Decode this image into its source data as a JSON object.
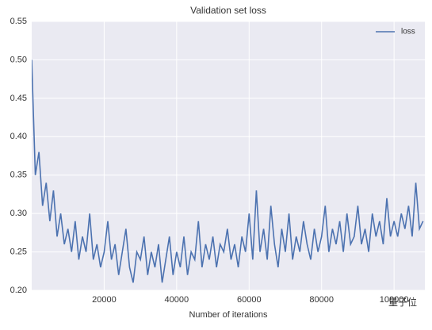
{
  "chart_data": {
    "type": "line",
    "title": "Validation set loss",
    "xlabel": "Number of iterations",
    "watermark": "量子位",
    "x": [
      0,
      1000,
      2000,
      3000,
      4000,
      5000,
      6000,
      7000,
      8000,
      9000,
      10000,
      11000,
      12000,
      13000,
      14000,
      15000,
      16000,
      17000,
      18000,
      19000,
      20000,
      21000,
      22000,
      23000,
      24000,
      25000,
      26000,
      27000,
      28000,
      29000,
      30000,
      31000,
      32000,
      33000,
      34000,
      35000,
      36000,
      37000,
      38000,
      39000,
      40000,
      41000,
      42000,
      43000,
      44000,
      45000,
      46000,
      47000,
      48000,
      49000,
      50000,
      51000,
      52000,
      53000,
      54000,
      55000,
      56000,
      57000,
      58000,
      59000,
      60000,
      61000,
      62000,
      63000,
      64000,
      65000,
      66000,
      67000,
      68000,
      69000,
      70000,
      71000,
      72000,
      73000,
      74000,
      75000,
      76000,
      77000,
      78000,
      79000,
      80000,
      81000,
      82000,
      83000,
      84000,
      85000,
      86000,
      87000,
      88000,
      89000,
      90000,
      91000,
      92000,
      93000,
      94000,
      95000,
      96000,
      97000,
      98000,
      99000,
      100000,
      101000,
      102000,
      103000,
      104000,
      105000,
      106000,
      107000,
      108000
    ],
    "series": [
      {
        "name": "loss",
        "color": "#4c72b0",
        "values": [
          0.5,
          0.35,
          0.38,
          0.31,
          0.34,
          0.29,
          0.33,
          0.27,
          0.3,
          0.26,
          0.28,
          0.25,
          0.29,
          0.24,
          0.27,
          0.25,
          0.3,
          0.24,
          0.26,
          0.23,
          0.25,
          0.29,
          0.24,
          0.26,
          0.22,
          0.25,
          0.28,
          0.23,
          0.21,
          0.25,
          0.24,
          0.27,
          0.22,
          0.25,
          0.23,
          0.26,
          0.21,
          0.24,
          0.27,
          0.22,
          0.25,
          0.23,
          0.27,
          0.22,
          0.25,
          0.24,
          0.29,
          0.23,
          0.26,
          0.24,
          0.27,
          0.23,
          0.26,
          0.25,
          0.28,
          0.24,
          0.26,
          0.23,
          0.27,
          0.25,
          0.3,
          0.24,
          0.33,
          0.25,
          0.28,
          0.24,
          0.31,
          0.26,
          0.23,
          0.28,
          0.25,
          0.3,
          0.24,
          0.27,
          0.25,
          0.29,
          0.26,
          0.24,
          0.28,
          0.25,
          0.27,
          0.31,
          0.25,
          0.28,
          0.26,
          0.29,
          0.25,
          0.3,
          0.26,
          0.27,
          0.31,
          0.26,
          0.28,
          0.25,
          0.3,
          0.27,
          0.29,
          0.26,
          0.32,
          0.27,
          0.29,
          0.27,
          0.3,
          0.28,
          0.31,
          0.27,
          0.34,
          0.28,
          0.29
        ]
      }
    ],
    "xlim": [
      0,
      108500
    ],
    "xticks": [
      20000,
      40000,
      60000,
      80000,
      100000
    ],
    "ylim": [
      0.2,
      0.55
    ],
    "yticks": [
      {
        "value": 0.2,
        "label": "0.20"
      },
      0.25,
      {
        "value": 0.3,
        "label": "0.30"
      },
      0.35,
      {
        "value": 0.4,
        "label": "0.40"
      },
      0.45,
      {
        "value": 0.5,
        "label": "0.50"
      },
      0.55
    ],
    "grid": true,
    "legend": "upper right"
  }
}
